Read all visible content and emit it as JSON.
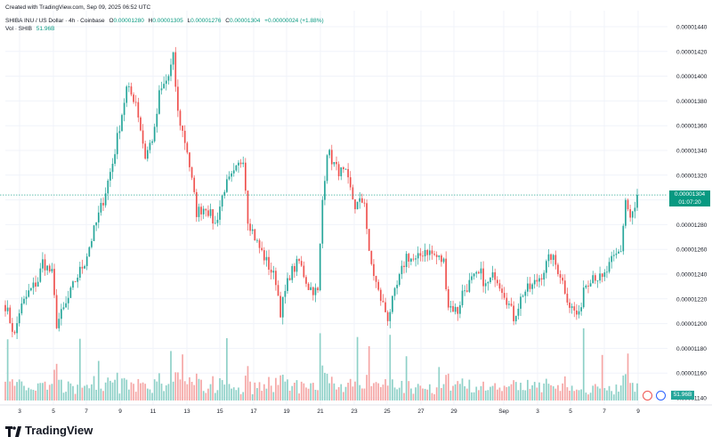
{
  "header": {
    "created": "Created with TradingView.com, Sep 09, 2025 06:52 UTC"
  },
  "legend": {
    "symbol": "SHIBA INU / US Dollar · 4h · Coinbase",
    "o_label": "O",
    "o_value": "0.00001280",
    "h_label": "H",
    "h_value": "0.00001305",
    "l_label": "L",
    "l_value": "0.00001276",
    "c_label": "C",
    "c_value": "0.00001304",
    "change": "+0.00000024 (+1.88%)",
    "vol_label": "Vol · SHIB",
    "vol_value": "51.96B"
  },
  "price_tag": {
    "price": "0.00001304",
    "countdown": "01:07:20"
  },
  "vol_tag": "51.96B",
  "brand": {
    "name": "TradingView"
  },
  "colors": {
    "up": "#26a69a",
    "down": "#ef5350",
    "up_vol": "#8fd1c8",
    "down_vol": "#f5a7a6",
    "grid": "#f0f3fa",
    "last_line": "#089981"
  },
  "chart_data": {
    "type": "candlestick",
    "title": "SHIBA INU / US Dollar · 4h · Coinbase",
    "y_ticks": [
      "0.00001440",
      "0.00001420",
      "0.00001400",
      "0.00001380",
      "0.00001360",
      "0.00001340",
      "0.00001320",
      "0.00001300",
      "0.00001280",
      "0.00001260",
      "0.00001240",
      "0.00001220",
      "0.00001200",
      "0.00001180",
      "0.00001160",
      "0.00001140"
    ],
    "ylim": [
      1.13e-05,
      1.45e-05
    ],
    "x_ticks": [
      "3",
      "5",
      "7",
      "9",
      "11",
      "13",
      "15",
      "17",
      "19",
      "21",
      "23",
      "25",
      "27",
      "29",
      "Sep",
      "3",
      "5",
      "7",
      "9"
    ],
    "last_price": 1.304e-05,
    "anchors": [
      [
        0,
        1215
      ],
      [
        4,
        1190
      ],
      [
        6,
        1210
      ],
      [
        10,
        1225
      ],
      [
        14,
        1235
      ],
      [
        16,
        1250
      ],
      [
        20,
        1240
      ],
      [
        22,
        1200
      ],
      [
        26,
        1215
      ],
      [
        30,
        1235
      ],
      [
        34,
        1250
      ],
      [
        38,
        1275
      ],
      [
        42,
        1300
      ],
      [
        46,
        1330
      ],
      [
        50,
        1370
      ],
      [
        52,
        1390
      ],
      [
        56,
        1380
      ],
      [
        60,
        1335
      ],
      [
        64,
        1355
      ],
      [
        66,
        1385
      ],
      [
        70,
        1400
      ],
      [
        72,
        1415
      ],
      [
        74,
        1370
      ],
      [
        78,
        1340
      ],
      [
        82,
        1290
      ],
      [
        86,
        1295
      ],
      [
        90,
        1280
      ],
      [
        94,
        1310
      ],
      [
        98,
        1320
      ],
      [
        102,
        1335
      ],
      [
        104,
        1285
      ],
      [
        108,
        1265
      ],
      [
        112,
        1250
      ],
      [
        116,
        1235
      ],
      [
        118,
        1210
      ],
      [
        122,
        1240
      ],
      [
        126,
        1250
      ],
      [
        130,
        1230
      ],
      [
        134,
        1225
      ],
      [
        136,
        1300
      ],
      [
        138,
        1340
      ],
      [
        142,
        1325
      ],
      [
        146,
        1320
      ],
      [
        150,
        1295
      ],
      [
        154,
        1300
      ],
      [
        156,
        1255
      ],
      [
        160,
        1225
      ],
      [
        164,
        1205
      ],
      [
        168,
        1230
      ],
      [
        172,
        1255
      ],
      [
        176,
        1250
      ],
      [
        180,
        1260
      ],
      [
        184,
        1255
      ],
      [
        188,
        1250
      ],
      [
        190,
        1215
      ],
      [
        194,
        1210
      ],
      [
        196,
        1225
      ],
      [
        200,
        1235
      ],
      [
        204,
        1240
      ],
      [
        206,
        1230
      ],
      [
        210,
        1240
      ],
      [
        214,
        1225
      ],
      [
        218,
        1205
      ],
      [
        222,
        1225
      ],
      [
        226,
        1230
      ],
      [
        230,
        1240
      ],
      [
        234,
        1255
      ],
      [
        238,
        1240
      ],
      [
        242,
        1215
      ],
      [
        246,
        1205
      ],
      [
        248,
        1230
      ],
      [
        252,
        1240
      ],
      [
        256,
        1235
      ],
      [
        260,
        1250
      ],
      [
        264,
        1260
      ],
      [
        266,
        1300
      ],
      [
        268,
        1285
      ],
      [
        270,
        1292
      ],
      [
        271,
        1304
      ]
    ],
    "candle_count": 272,
    "volume_unit": "B SHIB",
    "last_volume": 51.96
  }
}
